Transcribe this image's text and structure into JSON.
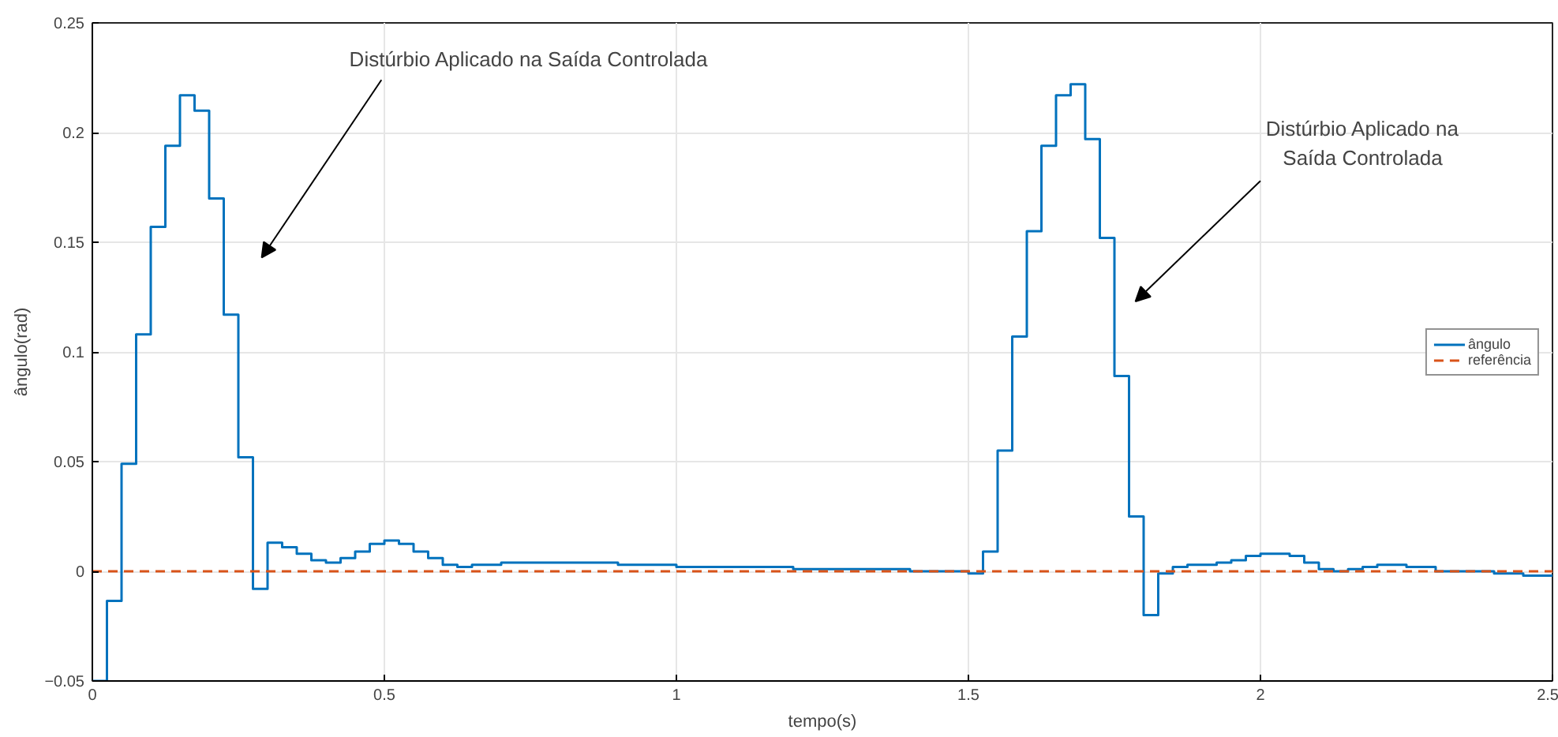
{
  "chart_data": {
    "type": "step",
    "xlabel": "tempo(s)",
    "ylabel": "ângulo(rad)",
    "xlim": [
      0,
      2.5
    ],
    "ylim": [
      -0.05,
      0.25
    ],
    "xticks": [
      0,
      0.5,
      1,
      1.5,
      2,
      2.5
    ],
    "yticks": [
      -0.05,
      0,
      0.05,
      0.1,
      0.15,
      0.2,
      0.25
    ],
    "grid": true,
    "legend": "right",
    "series": [
      {
        "name": "ângulo",
        "color": "#0072bd",
        "line_style": "solid",
        "x": [
          0,
          0.025,
          0.05,
          0.075,
          0.1,
          0.125,
          0.15,
          0.175,
          0.2,
          0.225,
          0.25,
          0.275,
          0.3,
          0.325,
          0.35,
          0.375,
          0.4,
          0.425,
          0.45,
          0.475,
          0.5,
          0.525,
          0.55,
          0.575,
          0.6,
          0.625,
          0.65,
          0.7,
          0.8,
          0.9,
          1.0,
          1.2,
          1.4,
          1.5,
          1.525,
          1.55,
          1.575,
          1.6,
          1.625,
          1.65,
          1.675,
          1.7,
          1.725,
          1.75,
          1.775,
          1.8,
          1.825,
          1.85,
          1.875,
          1.925,
          1.95,
          1.975,
          2.0,
          2.05,
          2.075,
          2.1,
          2.125,
          2.15,
          2.175,
          2.2,
          2.25,
          2.3,
          2.4,
          2.45,
          2.5
        ],
        "values": [
          -0.05,
          -0.0135,
          0.049,
          0.108,
          0.157,
          0.194,
          0.217,
          0.21,
          0.17,
          0.117,
          0.052,
          -0.008,
          0.013,
          0.011,
          0.008,
          0.005,
          0.004,
          0.006,
          0.009,
          0.0125,
          0.014,
          0.0125,
          0.009,
          0.006,
          0.003,
          0.002,
          0.003,
          0.004,
          0.004,
          0.003,
          0.002,
          0.001,
          0.0,
          -0.001,
          0.009,
          0.055,
          0.107,
          0.155,
          0.194,
          0.217,
          0.222,
          0.197,
          0.152,
          0.089,
          0.025,
          -0.02,
          -0.001,
          0.002,
          0.003,
          0.004,
          0.005,
          0.007,
          0.008,
          0.007,
          0.004,
          0.001,
          0.0,
          0.001,
          0.002,
          0.003,
          0.002,
          0.0,
          -0.001,
          -0.002,
          -0.002
        ]
      },
      {
        "name": "referência",
        "color": "#d95319",
        "type": "line",
        "line_style": "dashed",
        "x": [
          0,
          2.5
        ],
        "values": [
          0,
          0
        ]
      }
    ],
    "annotations": [
      "Distúrbio Aplicado na Saída Controlada",
      "Distúrbio Aplicado na\nSaída Controlada"
    ]
  }
}
